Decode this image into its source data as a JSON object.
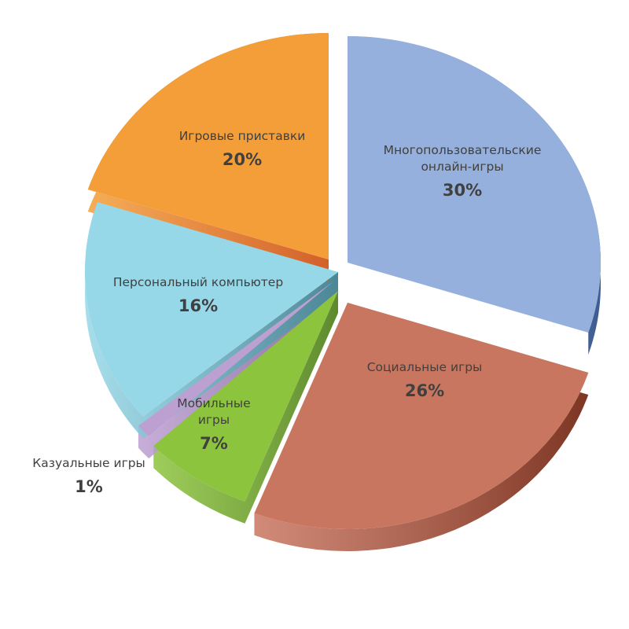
{
  "chart_data": {
    "type": "pie",
    "style": "3d-exploded",
    "title": "",
    "legend": "none",
    "slices": [
      {
        "name": "Многопользовательские онлайн-игры",
        "label_lines": [
          "Многопользовательские",
          "онлайн-игры"
        ],
        "value": 30,
        "value_label": "30%",
        "color": "#95B0DC",
        "side_color": "#3E5C8F"
      },
      {
        "name": "Социальные игры",
        "label_lines": [
          "Социальные игры"
        ],
        "value": 26,
        "value_label": "26%",
        "color": "#C97660",
        "side_color": "#7E3624"
      },
      {
        "name": "Мобильные игры",
        "label_lines": [
          "Мобильные",
          "игры"
        ],
        "value": 7,
        "value_label": "7%",
        "color": "#8DC43E",
        "side_color": "#5E8A2E"
      },
      {
        "name": "Казуальные игры",
        "label_lines": [
          "Казуальные игры"
        ],
        "value": 1,
        "value_label": "1%",
        "color": "#BDA0D2",
        "side_color": "#8C6F9E"
      },
      {
        "name": "Персональный компьютер",
        "label_lines": [
          "Персональный компьютер"
        ],
        "value": 16,
        "value_label": "16%",
        "color": "#97D8E8",
        "side_color": "#4C8796"
      },
      {
        "name": "Игровые приставки",
        "label_lines": [
          "Игровые приставки"
        ],
        "value": 20,
        "value_label": "20%",
        "color": "#F39E39",
        "side_color": "#D2602A"
      }
    ]
  }
}
